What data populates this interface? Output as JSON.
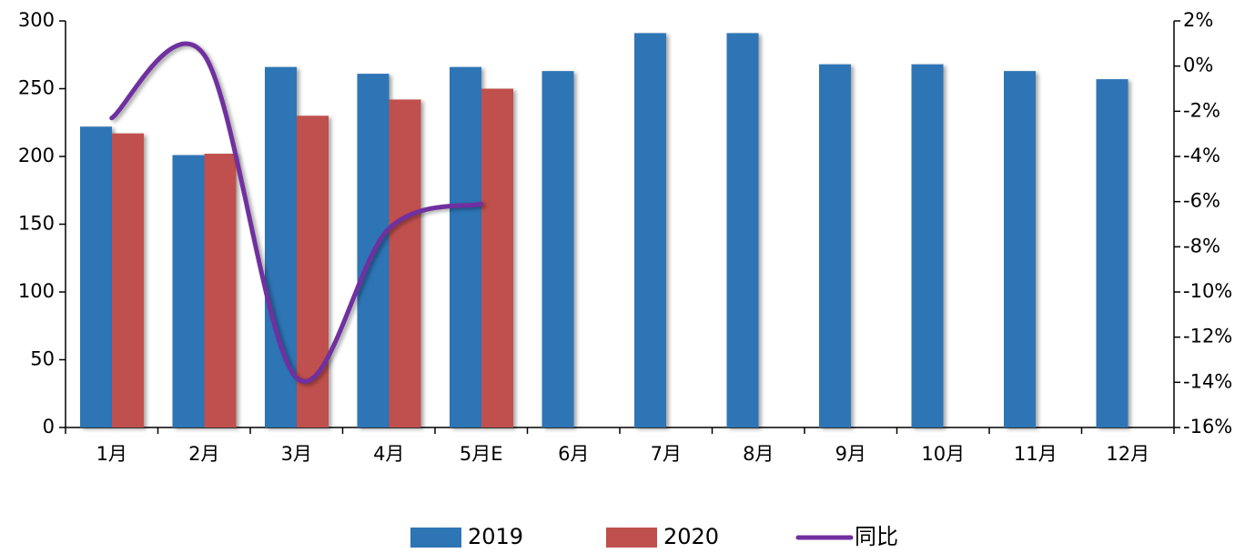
{
  "chart_data": {
    "type": "bar",
    "categories": [
      "1月",
      "2月",
      "3月",
      "4月",
      "5月E",
      "6月",
      "7月",
      "8月",
      "9月",
      "10月",
      "11月",
      "12月"
    ],
    "series": [
      {
        "name": "2019",
        "color": "#2e75b6",
        "values": [
          222,
          201,
          266,
          261,
          266,
          263,
          291,
          291,
          268,
          268,
          263,
          257
        ]
      },
      {
        "name": "2020",
        "color": "#c0504d",
        "values": [
          217,
          202,
          230,
          242,
          250,
          null,
          null,
          null,
          null,
          null,
          null,
          null
        ]
      },
      {
        "name": "同比",
        "type": "line",
        "axis": "y2",
        "color": "#7030a0",
        "values": [
          -2.3,
          0.5,
          -13.8,
          -7.2,
          -6.1,
          null,
          null,
          null,
          null,
          null,
          null,
          null
        ]
      }
    ],
    "ylim": [
      0,
      300
    ],
    "yticks": [
      0,
      50,
      100,
      150,
      200,
      250,
      300
    ],
    "y2lim": [
      -16,
      2
    ],
    "y2ticks": [
      {
        "value": -16,
        "label": "-16%"
      },
      {
        "value": -14,
        "label": "-14%"
      },
      {
        "value": -12,
        "label": "-12%"
      },
      {
        "value": -10,
        "label": "-10%"
      },
      {
        "value": -8,
        "label": "-8%"
      },
      {
        "value": -6,
        "label": "-6%"
      },
      {
        "value": -4,
        "label": "-4%"
      },
      {
        "value": -2,
        "label": "-2%"
      },
      {
        "value": 0,
        "label": "0%"
      },
      {
        "value": 2,
        "label": "2%"
      }
    ],
    "legend": "bottom"
  }
}
